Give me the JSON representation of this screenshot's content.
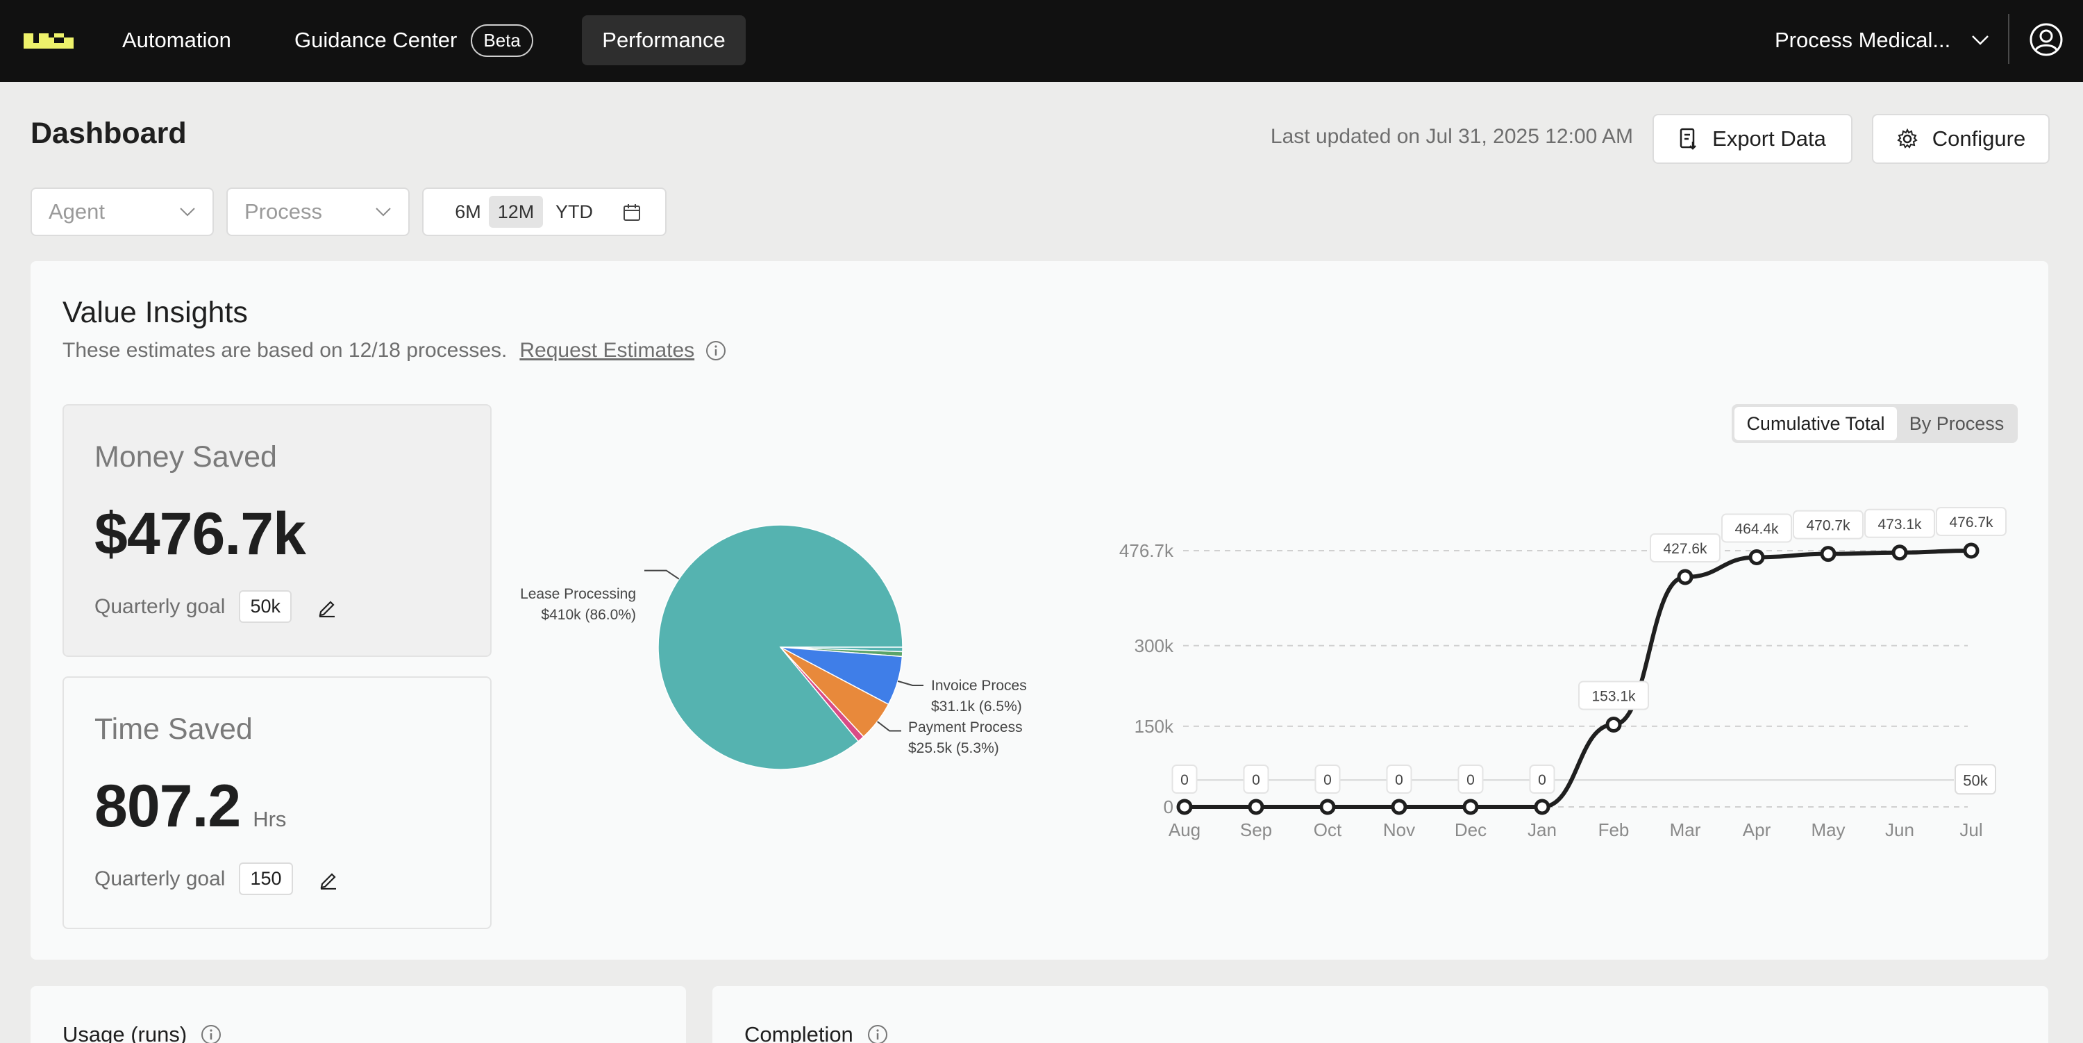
{
  "nav": {
    "items": [
      "Automation",
      "Guidance Center",
      "Performance"
    ],
    "beta_badge": "Beta",
    "process_selector": "Process Medical..."
  },
  "header": {
    "title": "Dashboard",
    "last_updated": "Last updated on Jul 31, 2025 12:00 AM",
    "export_label": "Export Data",
    "configure_label": "Configure"
  },
  "filters": {
    "agent_placeholder": "Agent",
    "process_placeholder": "Process",
    "ranges": [
      "6M",
      "12M",
      "YTD"
    ],
    "selected_range": "12M"
  },
  "value_insights": {
    "title": "Value Insights",
    "subtitle": "These estimates are based on 12/18 processes.",
    "request_link": "Request Estimates",
    "money": {
      "label": "Money Saved",
      "value": "$476.7k",
      "goal_label": "Quarterly goal",
      "goal": "50k"
    },
    "time": {
      "label": "Time Saved",
      "value": "807.2",
      "unit": "Hrs",
      "goal_label": "Quarterly goal",
      "goal": "150"
    },
    "view_toggle": [
      "Cumulative Total",
      "By Process"
    ],
    "selected_view": "Cumulative Total"
  },
  "chart_data": [
    {
      "type": "pie",
      "slices": [
        {
          "name": "Lease Processing",
          "value": 410,
          "label": "$410k (86.0%)",
          "percent": 86.0,
          "color": "#55b3b0"
        },
        {
          "name": "Invoice Proces",
          "value": 31.1,
          "label": "$31.1k (6.5%)",
          "percent": 6.5,
          "color": "#3f7ee8"
        },
        {
          "name": "Payment Process",
          "value": 25.5,
          "label": "$25.5k (5.3%)",
          "percent": 5.3,
          "color": "#e8893b"
        },
        {
          "name": "",
          "value": 4.3,
          "label": "",
          "percent": 0.9,
          "color": "#d94c86"
        },
        {
          "name": "",
          "value": 3.0,
          "label": "",
          "percent": 0.65,
          "color": "#5aa469"
        },
        {
          "name": "",
          "value": 2.8,
          "label": "",
          "percent": 0.6,
          "color": "#55b3b0"
        }
      ]
    },
    {
      "type": "line",
      "categories": [
        "Aug",
        "Sep",
        "Oct",
        "Nov",
        "Dec",
        "Jan",
        "Feb",
        "Mar",
        "Apr",
        "May",
        "Jun",
        "Jul"
      ],
      "values": [
        0,
        0,
        0,
        0,
        0,
        0,
        153.1,
        427.6,
        464.4,
        470.7,
        473.1,
        476.7
      ],
      "point_labels": [
        "0",
        "0",
        "0",
        "0",
        "0",
        "0",
        "153.1k",
        "427.6k",
        "464.4k",
        "470.7k",
        "473.1k",
        "476.7k"
      ],
      "y_ticks": [
        {
          "value": 0,
          "label": "0"
        },
        {
          "value": 150,
          "label": "150k"
        },
        {
          "value": 300,
          "label": "300k"
        },
        {
          "value": 476.7,
          "label": "476.7k"
        }
      ],
      "goal_line": {
        "value": 50,
        "label": "50k"
      },
      "ylim": [
        0,
        476.7
      ],
      "grid": true,
      "color": "#1f1f1f"
    }
  ],
  "lower_cards": {
    "usage_title": "Usage (runs)",
    "completion_title": "Completion"
  }
}
